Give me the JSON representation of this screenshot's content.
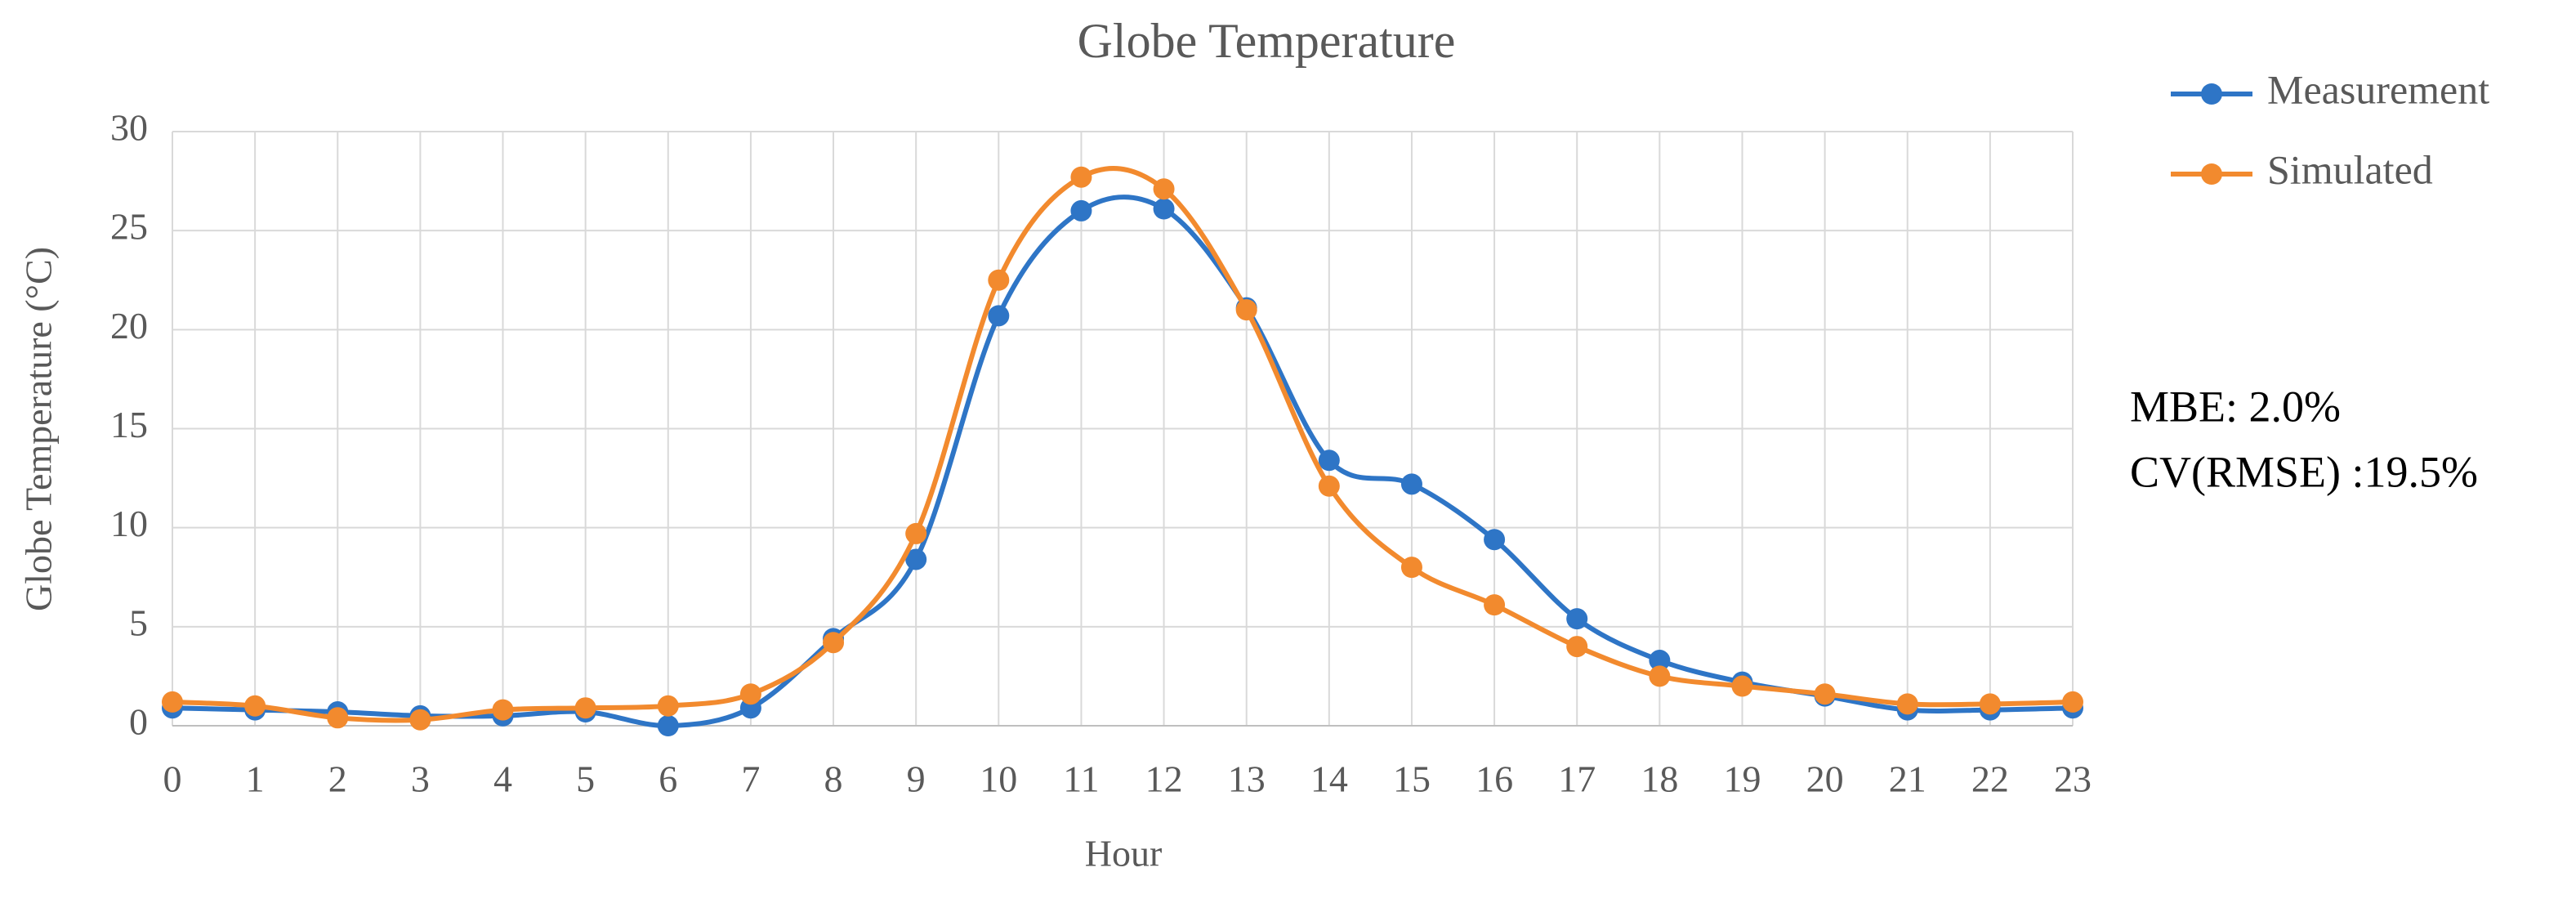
{
  "chart_data": {
    "type": "line",
    "title": "Globe Temperature",
    "x_label": "Hour",
    "y_label": "Globe Temperature (°C)",
    "x": [
      0,
      1,
      2,
      3,
      4,
      5,
      6,
      7,
      8,
      9,
      10,
      11,
      12,
      13,
      14,
      15,
      16,
      17,
      18,
      19,
      20,
      21,
      22,
      23
    ],
    "xlim": [
      0,
      23
    ],
    "xticks": [
      0,
      1,
      2,
      3,
      4,
      5,
      6,
      7,
      8,
      9,
      10,
      11,
      12,
      13,
      14,
      15,
      16,
      17,
      18,
      19,
      20,
      21,
      22,
      23
    ],
    "ylim": [
      0,
      30
    ],
    "yticks": [
      0,
      5,
      10,
      15,
      20,
      25,
      30
    ],
    "grid": true,
    "legend": "right",
    "smooth": true,
    "series": [
      {
        "name": "Measurement",
        "color": "#2e75c6",
        "values": [
          0.9,
          0.8,
          0.7,
          0.5,
          0.5,
          0.7,
          0.0,
          0.9,
          4.4,
          8.4,
          20.7,
          26.0,
          26.1,
          21.1,
          13.4,
          12.2,
          9.4,
          5.4,
          3.3,
          2.2,
          1.5,
          0.8,
          0.8,
          0.9
        ]
      },
      {
        "name": "Simulated",
        "color": "#f28a2e",
        "values": [
          1.2,
          1.0,
          0.4,
          0.3,
          0.8,
          0.9,
          1.0,
          1.6,
          4.2,
          9.7,
          22.5,
          27.7,
          27.1,
          21.0,
          12.1,
          8.0,
          6.1,
          4.0,
          2.5,
          2.0,
          1.6,
          1.1,
          1.1,
          1.2
        ]
      }
    ],
    "annotations": [
      "MBE: 2.0%",
      "CV(RMSE) :19.5%"
    ]
  }
}
